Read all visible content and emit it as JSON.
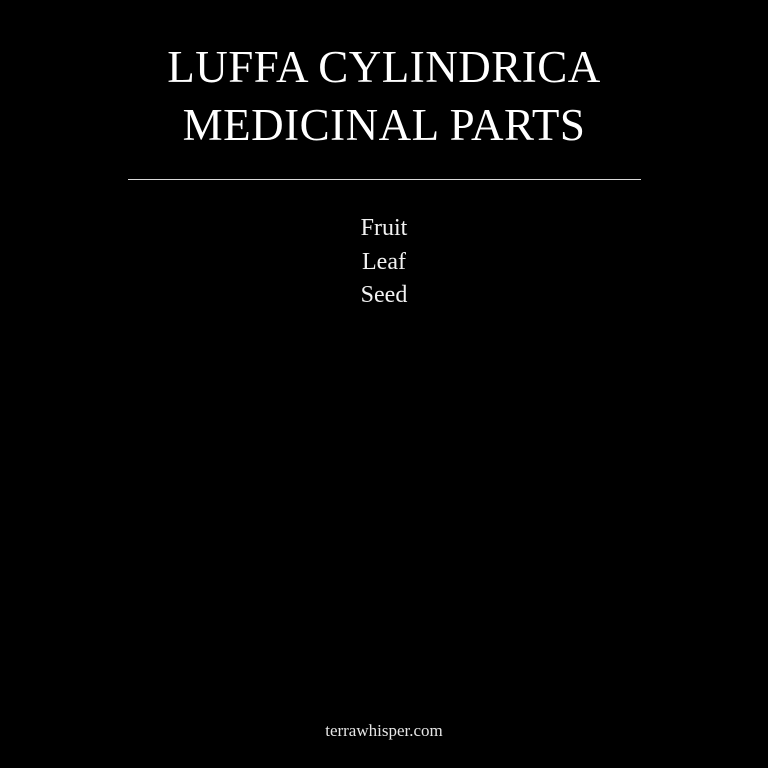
{
  "title": {
    "line1": "LUFFA CYLINDRICA",
    "line2": "MEDICINAL PARTS"
  },
  "parts": {
    "items": [
      "Fruit",
      "Leaf",
      "Seed"
    ]
  },
  "footer": {
    "site": "terrawhisper.com"
  },
  "colors": {
    "background": "#000000",
    "text": "#ffffff"
  }
}
